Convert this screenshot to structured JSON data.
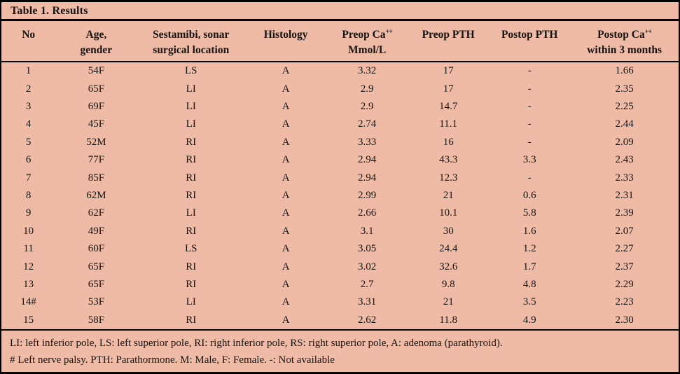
{
  "title": "Table 1. Results",
  "colors": {
    "background": "#f0bba6",
    "border": "#000000",
    "text": "#141414"
  },
  "table": {
    "columns": [
      {
        "line1": "No"
      },
      {
        "line1": "Age,",
        "line2": "gender"
      },
      {
        "line1": "Sestamibi, sonar",
        "line2": "surgical location"
      },
      {
        "line1": "Histology"
      },
      {
        "line1": "Preop Ca",
        "sup": "++",
        "line2": "Mmol/L"
      },
      {
        "line1": "Preop PTH"
      },
      {
        "line1": "Postop PTH"
      },
      {
        "line1": "Postop Ca",
        "sup": "++",
        "line2": "within 3 months"
      }
    ],
    "rows": [
      [
        "1",
        "54F",
        "LS",
        "A",
        "3.32",
        "17",
        "-",
        "1.66"
      ],
      [
        "2",
        "65F",
        "LI",
        "A",
        "2.9",
        "17",
        "-",
        "2.35"
      ],
      [
        "3",
        "69F",
        "LI",
        "A",
        "2.9",
        "14.7",
        "-",
        "2.25"
      ],
      [
        "4",
        "45F",
        "LI",
        "A",
        "2.74",
        "11.1",
        "-",
        "2.44"
      ],
      [
        "5",
        "52M",
        "RI",
        "A",
        "3.33",
        "16",
        "-",
        "2.09"
      ],
      [
        "6",
        "77F",
        "RI",
        "A",
        "2.94",
        "43.3",
        "3.3",
        "2.43"
      ],
      [
        "7",
        "85F",
        "RI",
        "A",
        "2.94",
        "12.3",
        "-",
        "2.33"
      ],
      [
        "8",
        "62M",
        "RI",
        "A",
        "2.99",
        "21",
        "0.6",
        "2.31"
      ],
      [
        "9",
        "62F",
        "LI",
        "A",
        "2.66",
        "10.1",
        "5.8",
        "2.39"
      ],
      [
        "10",
        "49F",
        "RI",
        "A",
        "3.1",
        "30",
        "1.6",
        "2.07"
      ],
      [
        "11",
        "60F",
        "LS",
        "A",
        "3.05",
        "24.4",
        "1.2",
        "2.27"
      ],
      [
        "12",
        "65F",
        "RI",
        "A",
        "3.02",
        "32.6",
        "1.7",
        "2.37"
      ],
      [
        "13",
        "65F",
        "RI",
        "A",
        "2.7",
        "9.8",
        "4.8",
        "2.29"
      ],
      [
        "14#",
        "53F",
        "LI",
        "A",
        "3.31",
        "21",
        "3.5",
        "2.23"
      ],
      [
        "15",
        "58F",
        "RI",
        "A",
        "2.62",
        "11.8",
        "4.9",
        "2.30"
      ]
    ]
  },
  "footnotes": {
    "line1": "LI: left inferior pole, LS: left superior pole, RI: right inferior pole, RS: right superior pole, A: adenoma (parathyroid).",
    "line2": "# Left nerve palsy. PTH: Parathormone. M: Male, F: Female. -: Not available"
  }
}
